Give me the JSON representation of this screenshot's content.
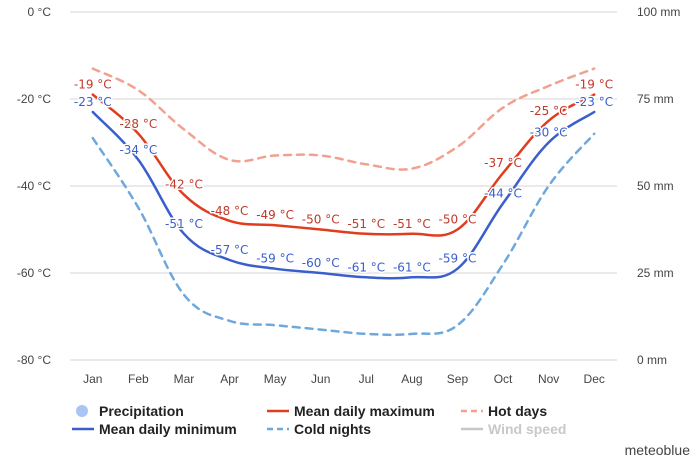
{
  "chart_data": {
    "type": "line",
    "categories": [
      "Jan",
      "Feb",
      "Mar",
      "Apr",
      "May",
      "Jun",
      "Jul",
      "Aug",
      "Sep",
      "Oct",
      "Nov",
      "Dec"
    ],
    "y_left": {
      "ticks": [
        "0 °C",
        "-20 °C",
        "-40 °C",
        "-60 °C",
        "-80 °C"
      ],
      "range": [
        -80,
        0
      ]
    },
    "y_right": {
      "ticks": [
        "100 mm",
        "75 mm",
        "50 mm",
        "25 mm",
        "0 mm"
      ],
      "range": [
        0,
        100
      ]
    },
    "grid": true,
    "series": [
      {
        "name": "Mean daily maximum",
        "color": "#e03c1e",
        "style": "solid",
        "values": [
          -19,
          -28,
          -42,
          -48,
          -49,
          -50,
          -51,
          -51,
          -50,
          -37,
          -25,
          -19
        ],
        "labels": [
          "-19 °C",
          "-28 °C",
          "-42 °C",
          "-48 °C",
          "-49 °C",
          "-50 °C",
          "-51 °C",
          "-51 °C",
          "-50 °C",
          "-37 °C",
          "-25 °C",
          "-19 °C"
        ]
      },
      {
        "name": "Mean daily minimum",
        "color": "#3a5fcd",
        "style": "solid",
        "values": [
          -23,
          -34,
          -51,
          -57,
          -59,
          -60,
          -61,
          -61,
          -59,
          -44,
          -30,
          -23
        ],
        "labels": [
          "-23 °C",
          "-34 °C",
          "-51 °C",
          "-57 °C",
          "-59 °C",
          "-60 °C",
          "-61 °C",
          "-61 °C",
          "-59 °C",
          "-44 °C",
          "-30 °C",
          "-23 °C"
        ]
      },
      {
        "name": "Hot days",
        "color": "#f4a090",
        "style": "dashed",
        "values": [
          -13,
          -18,
          -27,
          -34,
          -33,
          -33,
          -35,
          -36,
          -31,
          -22,
          -17,
          -13
        ]
      },
      {
        "name": "Cold nights",
        "color": "#6fa8dc",
        "style": "dashed",
        "values": [
          -29,
          -45,
          -65,
          -71,
          -72,
          -73,
          -74,
          -74,
          -72,
          -58,
          -40,
          -28
        ]
      }
    ],
    "legend": {
      "position": "bottom",
      "items": [
        {
          "name": "Precipitation",
          "marker": "circle",
          "color": "#a9c4f5",
          "enabled": true
        },
        {
          "name": "Mean daily maximum",
          "marker": "line",
          "color": "#e03c1e",
          "enabled": true
        },
        {
          "name": "Hot days",
          "marker": "dashed",
          "color": "#f4a090",
          "enabled": true
        },
        {
          "name": "Mean daily minimum",
          "marker": "line",
          "color": "#3a5fcd",
          "enabled": true
        },
        {
          "name": "Cold nights",
          "marker": "dashed",
          "color": "#6fa8dc",
          "enabled": true
        },
        {
          "name": "Wind speed",
          "marker": "line",
          "color": "#c8c8c8",
          "enabled": false
        }
      ]
    }
  },
  "branding": {
    "text": "meteoblue"
  }
}
